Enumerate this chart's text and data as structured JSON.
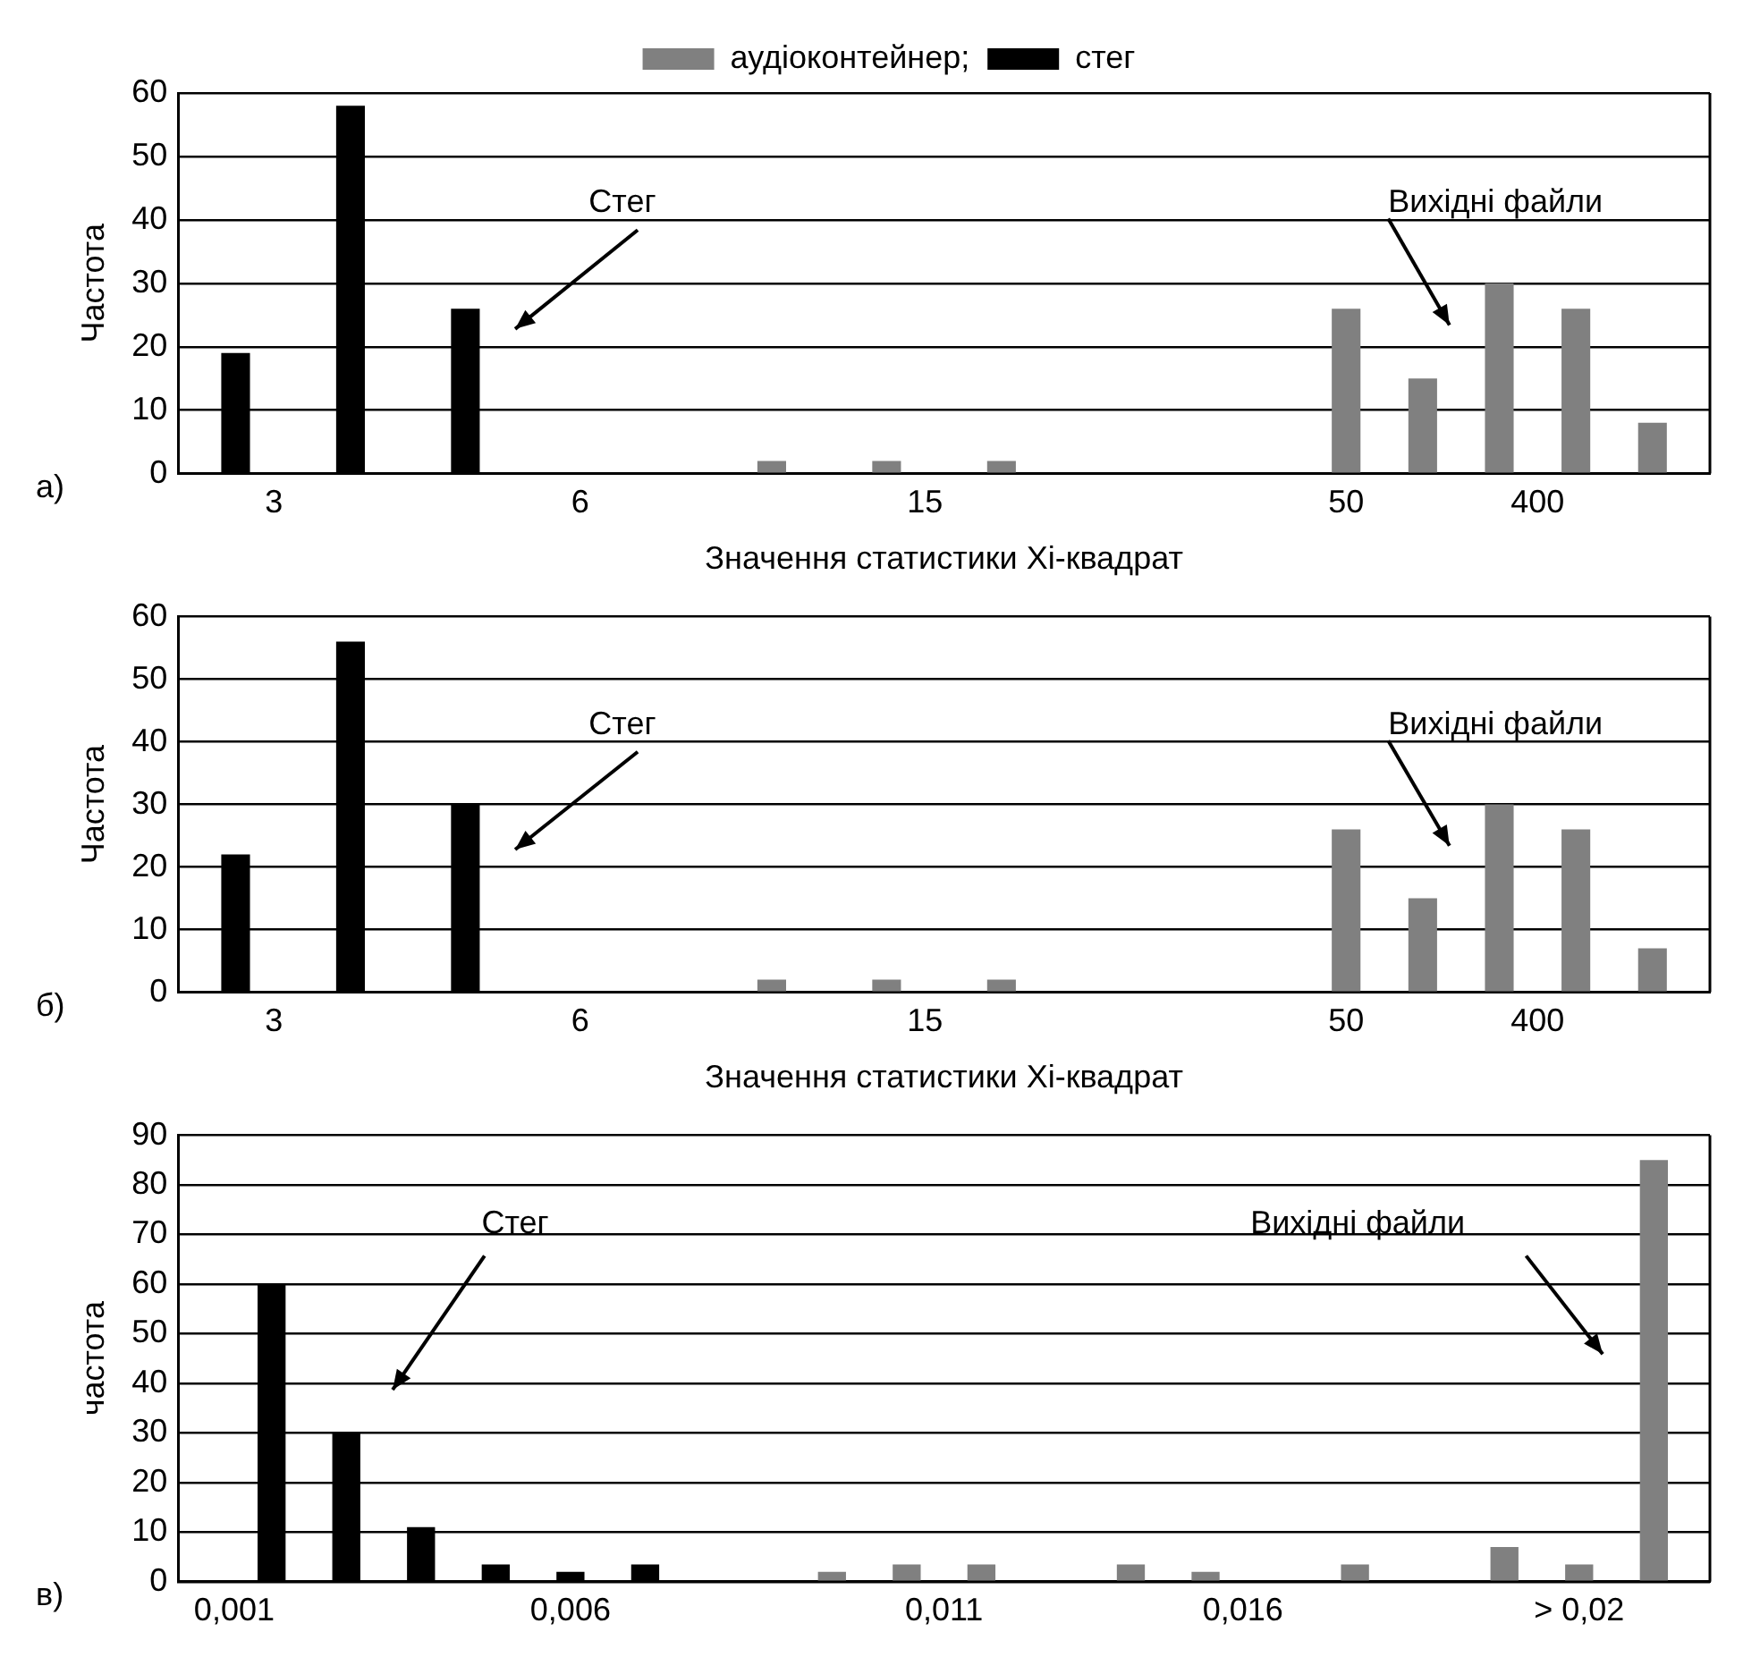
{
  "chart_data": [
    {
      "type": "bar",
      "ylabel": "Частота",
      "xlabel": "Значення статистики Хі-квадрат",
      "categories": [
        null,
        null,
        "3",
        null,
        null,
        null,
        null,
        null,
        null,
        null,
        "6",
        null,
        null,
        null,
        null,
        null,
        null,
        null,
        null,
        "15",
        null,
        null,
        null,
        null,
        null,
        null,
        null,
        null,
        null,
        null,
        "50",
        null,
        null,
        null,
        null,
        "400",
        null,
        null,
        null,
        null
      ],
      "series": [
        {
          "name": "аудіоконтейнер;",
          "color": "#808080",
          "values": [
            null,
            null,
            null,
            null,
            null,
            null,
            null,
            null,
            null,
            null,
            null,
            null,
            null,
            null,
            null,
            2,
            null,
            null,
            2,
            null,
            null,
            2,
            null,
            null,
            null,
            null,
            null,
            null,
            null,
            null,
            26,
            null,
            15,
            null,
            30,
            null,
            26,
            null,
            8,
            null
          ]
        },
        {
          "name": "стег",
          "color": "#000000",
          "values": [
            null,
            19,
            null,
            null,
            58,
            null,
            null,
            26,
            null,
            null,
            null,
            null,
            null,
            null,
            null,
            null,
            null,
            null,
            null,
            null,
            null,
            null,
            null,
            null,
            null,
            null,
            null,
            null,
            null,
            null,
            null,
            null,
            null,
            null,
            null,
            null,
            null,
            null,
            null,
            null
          ]
        }
      ],
      "ylim": [
        0,
        60
      ],
      "yticks": [
        0,
        10,
        20,
        30,
        40,
        50,
        60
      ],
      "grid": "y",
      "legend": "top",
      "annotations": [
        "а)",
        "Стег",
        "Вихідні файли"
      ]
    },
    {
      "type": "bar",
      "ylabel": "Частота",
      "xlabel": "Значення статистики Хі-квадрат",
      "categories": [
        null,
        null,
        "3",
        null,
        null,
        null,
        null,
        null,
        null,
        null,
        "6",
        null,
        null,
        null,
        null,
        null,
        null,
        null,
        null,
        "15",
        null,
        null,
        null,
        null,
        null,
        null,
        null,
        null,
        null,
        null,
        "50",
        null,
        null,
        null,
        null,
        "400",
        null,
        null,
        null,
        null
      ],
      "series": [
        {
          "color": "#808080",
          "values": [
            null,
            null,
            null,
            null,
            null,
            null,
            null,
            null,
            null,
            null,
            null,
            null,
            null,
            null,
            null,
            2,
            null,
            null,
            2,
            null,
            null,
            2,
            null,
            null,
            null,
            null,
            null,
            null,
            null,
            null,
            26,
            null,
            15,
            null,
            30,
            null,
            26,
            null,
            7,
            null
          ]
        },
        {
          "color": "#000000",
          "values": [
            null,
            22,
            null,
            null,
            56,
            null,
            null,
            30,
            null,
            null,
            null,
            null,
            null,
            null,
            null,
            null,
            null,
            null,
            null,
            null,
            null,
            null,
            null,
            null,
            null,
            null,
            null,
            null,
            null,
            null,
            null,
            null,
            null,
            null,
            null,
            null,
            null,
            null,
            null,
            null
          ]
        }
      ],
      "ylim": [
        0,
        60
      ],
      "yticks": [
        0,
        10,
        20,
        30,
        40,
        50,
        60
      ],
      "grid": "y",
      "annotations": [
        "б)",
        "Стег",
        "Вихідні файли"
      ]
    },
    {
      "type": "bar",
      "ylabel": "частота",
      "categories": [
        null,
        "0,001",
        null,
        null,
        null,
        null,
        null,
        null,
        null,
        null,
        "0,006",
        null,
        null,
        null,
        null,
        null,
        null,
        null,
        null,
        null,
        "0,011",
        null,
        null,
        null,
        null,
        null,
        null,
        null,
        "0,016",
        null,
        null,
        null,
        null,
        null,
        null,
        null,
        null,
        "> 0,02",
        null,
        null,
        null
      ],
      "series": [
        {
          "color": "#808080",
          "values": [
            null,
            null,
            null,
            null,
            null,
            null,
            null,
            null,
            null,
            null,
            null,
            null,
            null,
            null,
            null,
            null,
            null,
            2,
            null,
            3.5,
            null,
            3.5,
            null,
            null,
            null,
            3.5,
            null,
            2,
            null,
            null,
            null,
            3.5,
            null,
            null,
            null,
            7,
            null,
            3.5,
            null,
            85,
            null
          ]
        },
        {
          "color": "#000000",
          "values": [
            null,
            null,
            60,
            null,
            30,
            null,
            11,
            null,
            3.5,
            null,
            2,
            null,
            3.5,
            null,
            null,
            null,
            null,
            null,
            null,
            null,
            null,
            null,
            null,
            null,
            null,
            null,
            null,
            null,
            null,
            null,
            null,
            null,
            null,
            null,
            null,
            null,
            null,
            null,
            null,
            null,
            null
          ]
        }
      ],
      "ylim": [
        0,
        90
      ],
      "yticks": [
        0,
        10,
        20,
        30,
        40,
        50,
        60,
        70,
        80,
        90
      ],
      "grid": "y",
      "annotations": [
        "в)",
        "Стег",
        "Вихідні файли"
      ]
    }
  ]
}
